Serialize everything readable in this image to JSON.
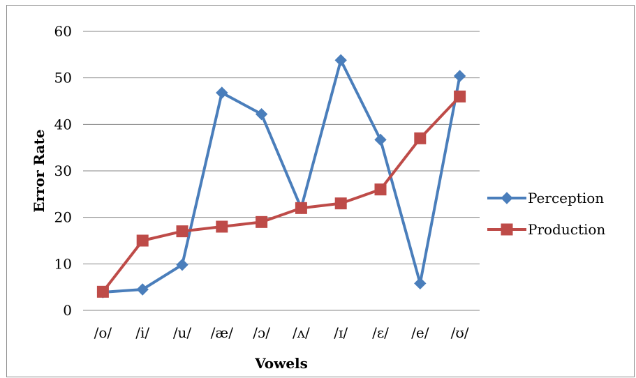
{
  "chart_data": {
    "type": "line",
    "categories": [
      "/o/",
      "/i/",
      "/u/",
      "/æ/",
      "/ɔ/",
      "/ʌ/",
      "/ɪ/",
      "/ɛ/",
      "/e/",
      "/ʊ/"
    ],
    "series": [
      {
        "name": "Perception",
        "color": "#4a7ebb",
        "marker": "diamond",
        "values": [
          3.9,
          4.5,
          9.8,
          46.8,
          42.2,
          22.0,
          53.8,
          36.7,
          5.8,
          50.4
        ]
      },
      {
        "name": "Production",
        "color": "#be4b48",
        "marker": "square",
        "values": [
          4.0,
          15.0,
          17.0,
          18.0,
          19.0,
          22.0,
          23.0,
          26.0,
          37.0,
          46.0
        ]
      }
    ],
    "xlabel": "Vowels",
    "ylabel": "Error Rate",
    "ylim": [
      0,
      60
    ],
    "yticks": [
      0,
      10,
      20,
      30,
      40,
      50,
      60
    ],
    "grid": "horizontal",
    "legend_position": "right"
  }
}
